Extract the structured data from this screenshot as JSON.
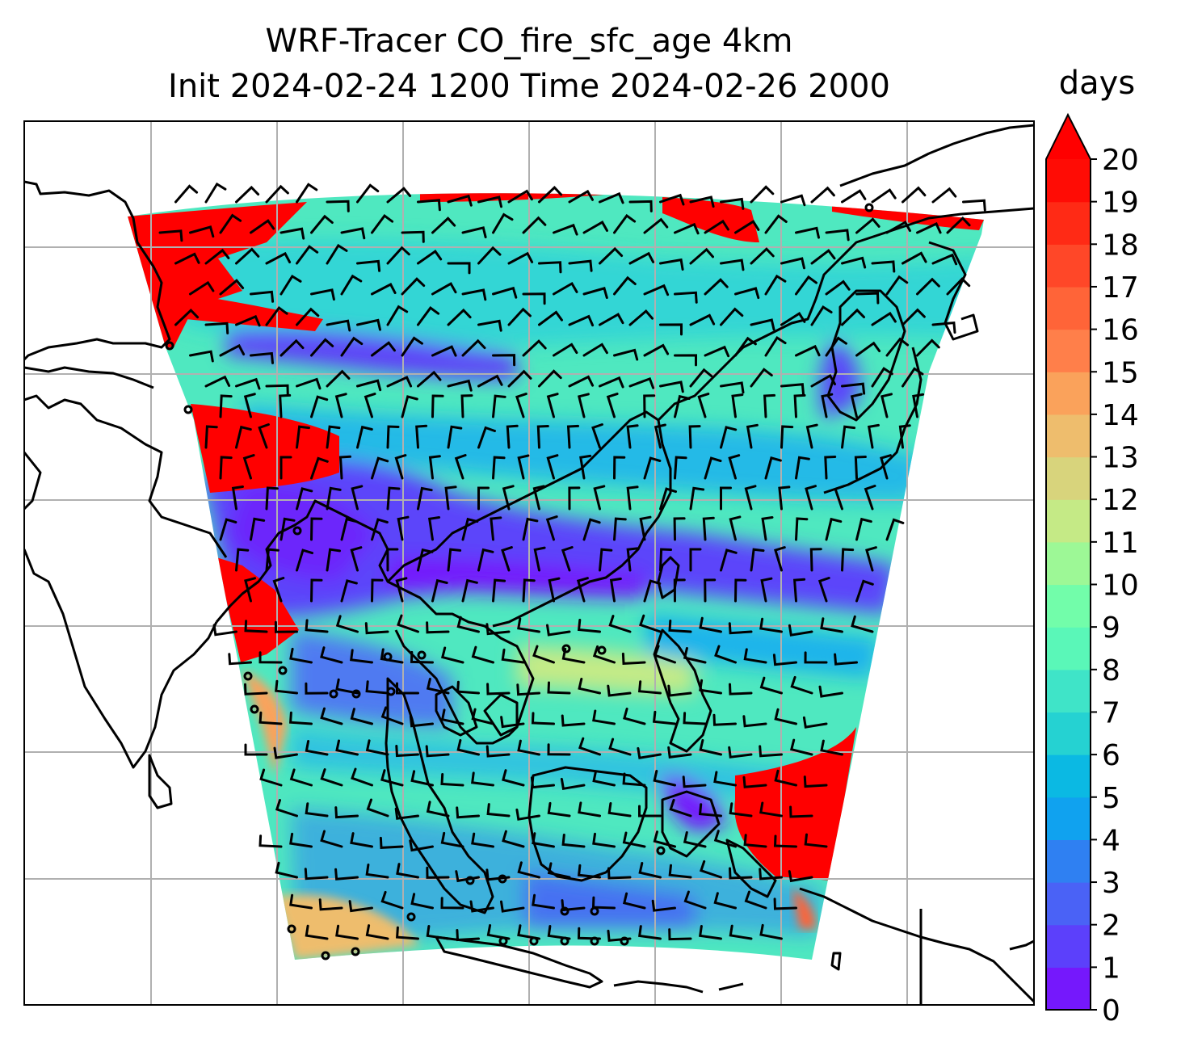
{
  "title_line1": "WRF-Tracer CO_fire_sfc_age 4km",
  "title_line2": "Init 2024-02-24 1200 Time 2024-02-26 2000",
  "colorbar": {
    "unit": "days",
    "min": 0,
    "max": 20,
    "extend": "max",
    "ticks": [
      "0",
      "1",
      "2",
      "3",
      "4",
      "5",
      "6",
      "7",
      "8",
      "9",
      "10",
      "11",
      "12",
      "13",
      "14",
      "15",
      "16",
      "17",
      "18",
      "19",
      "20"
    ],
    "colors": [
      "#7518fc",
      "#5c40fb",
      "#4a62f6",
      "#2f80f2",
      "#10a2ef",
      "#0bb9e3",
      "#25d2d2",
      "#3fe4c8",
      "#5af7b8",
      "#72fdaa",
      "#9df896",
      "#c5ea86",
      "#d8d47c",
      "#eebd6d",
      "#faa25b",
      "#ff7f4a",
      "#ff6438",
      "#ff4728",
      "#ff2a15",
      "#ff0c05"
    ],
    "extend_color": "#ff0000"
  },
  "map": {
    "gridlines": true,
    "shading": "CO fire surface tracer age (days)",
    "overlay": "wind barbs"
  }
}
